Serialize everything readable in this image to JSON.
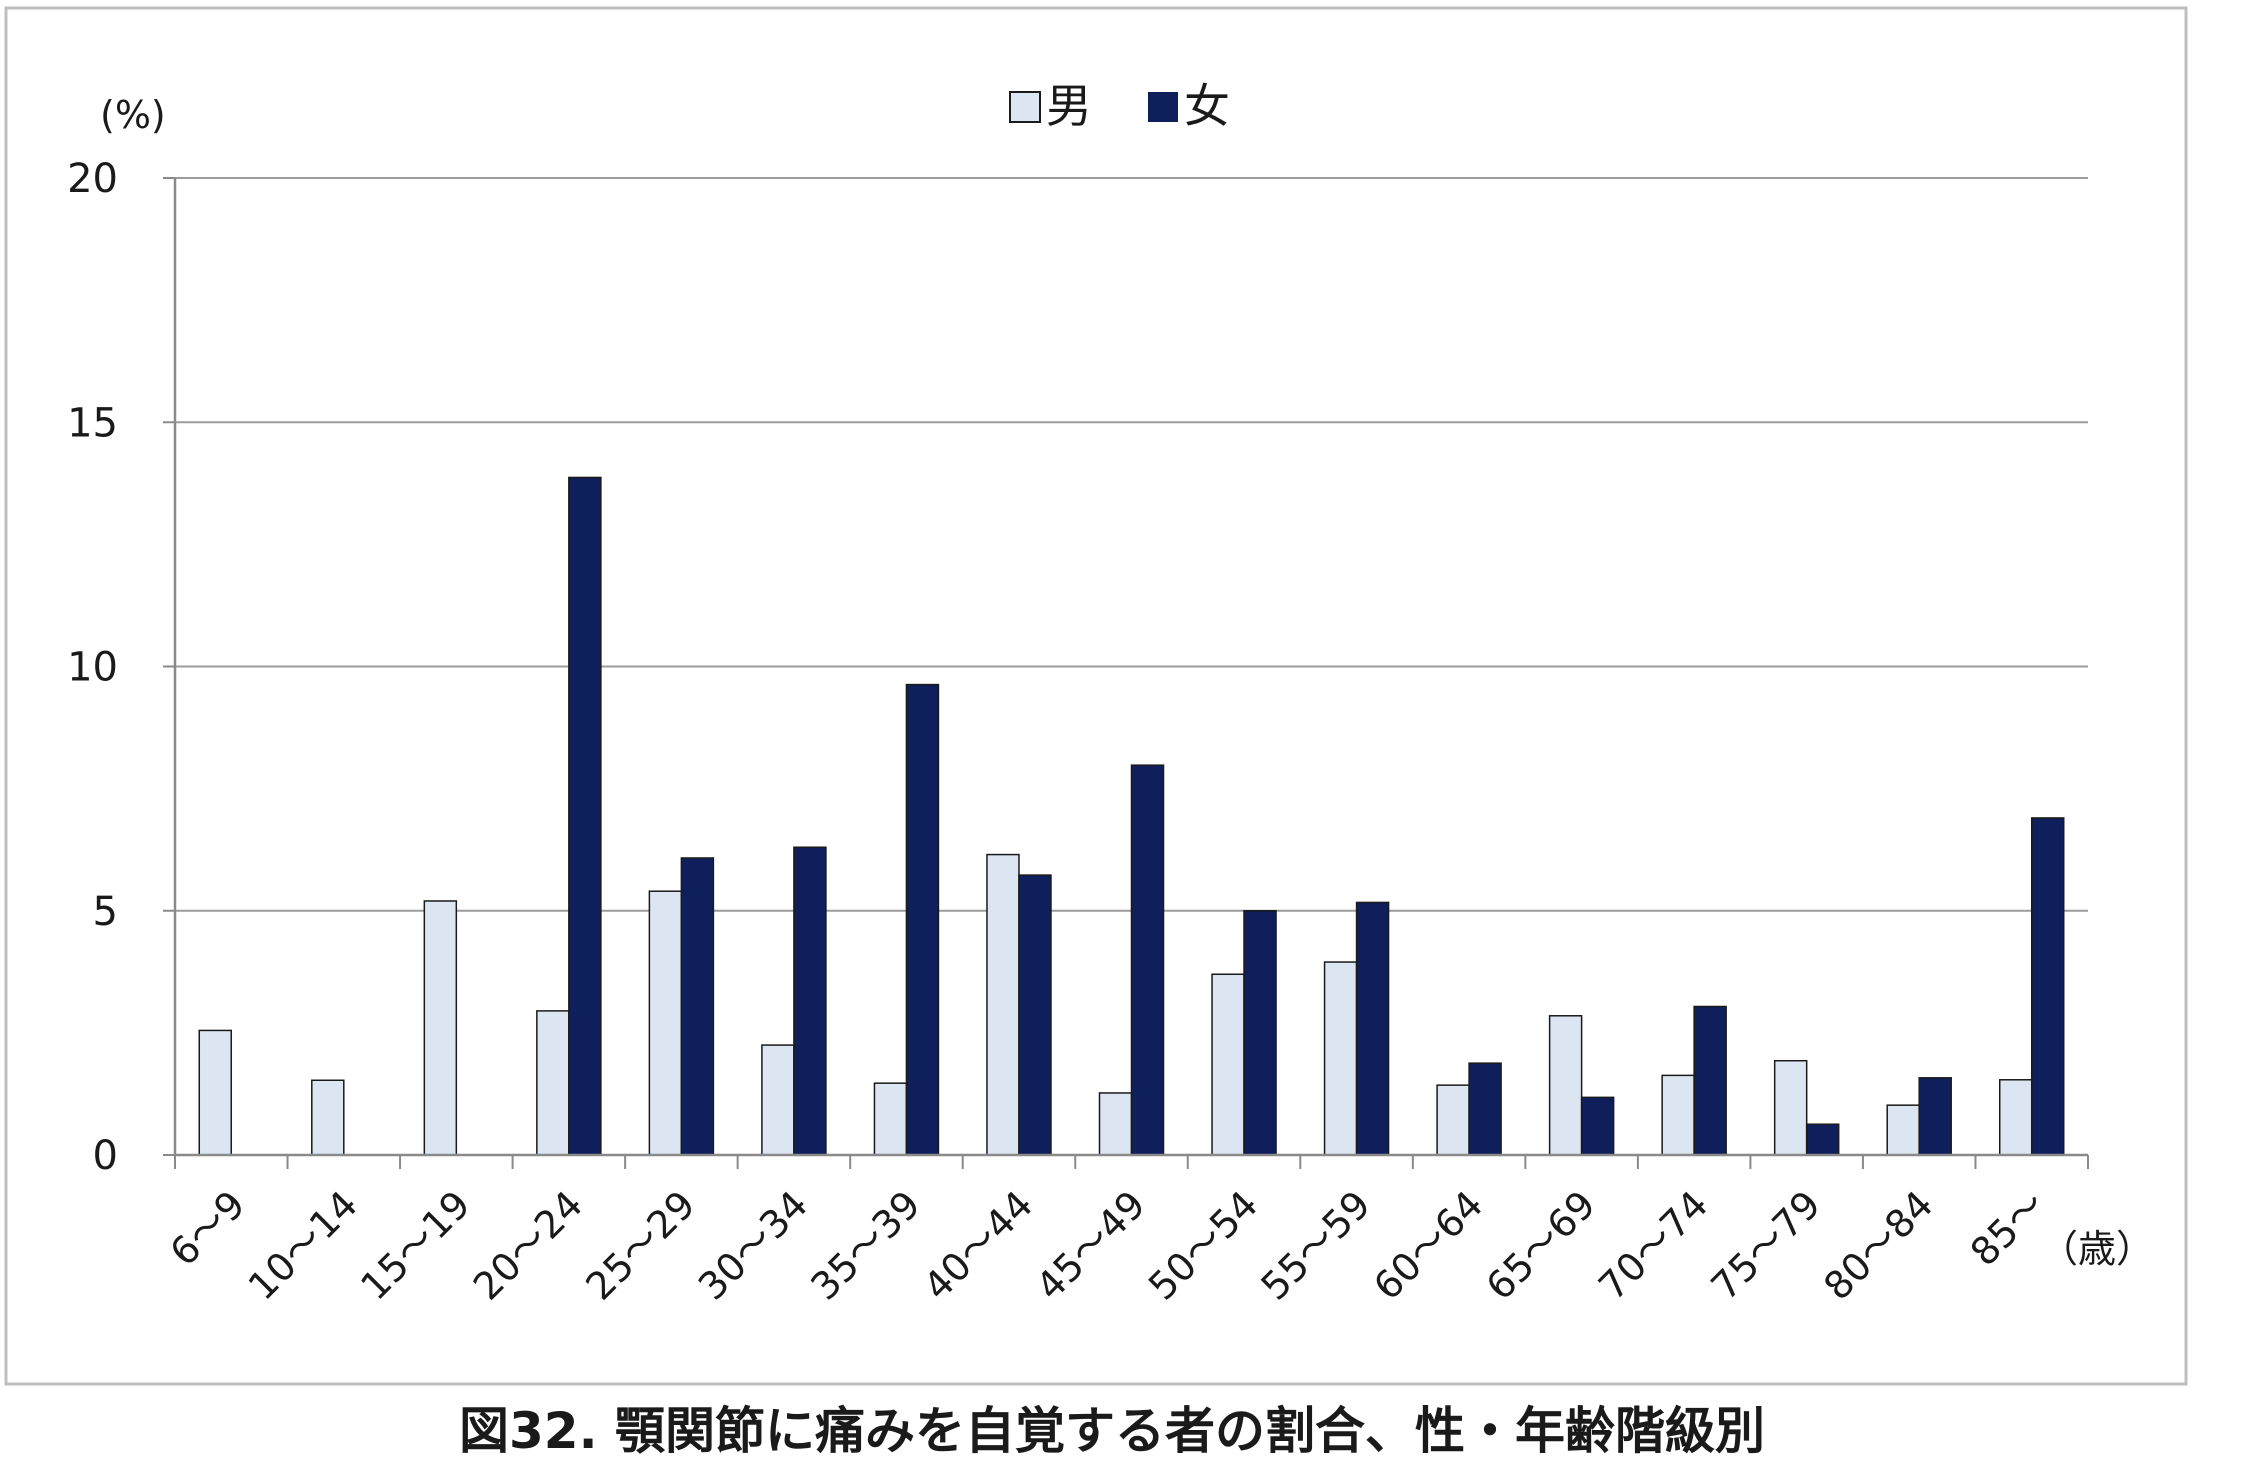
{
  "chart_data": {
    "type": "bar",
    "title": "",
    "caption": "図32.  顎関節に痛みを自覚する者の割合、性・年齢階級別",
    "ylabel": "(%)",
    "xlabel": "（歳）",
    "ylim": [
      0,
      20
    ],
    "yticks": [
      "0",
      "5",
      "10",
      "15",
      "20"
    ],
    "grid": true,
    "legend_position": "top-center",
    "categories": [
      "6～9",
      "10～14",
      "15～19",
      "20～24",
      "25～29",
      "30～34",
      "35～39",
      "40～44",
      "45～49",
      "50～54",
      "55～59",
      "60～64",
      "65～69",
      "70～74",
      "75～79",
      "80～84",
      "85～"
    ],
    "series": [
      {
        "name": "男",
        "color": "#dce6f2",
        "values": [
          2.55,
          1.53,
          5.2,
          2.95,
          5.4,
          2.25,
          1.47,
          6.15,
          1.27,
          3.7,
          3.95,
          1.43,
          2.85,
          1.63,
          1.93,
          1.02,
          1.54
        ]
      },
      {
        "name": "女",
        "color": "#0e1f5b",
        "values": [
          0,
          0,
          0,
          13.87,
          6.08,
          6.3,
          9.63,
          5.73,
          7.98,
          5.0,
          5.17,
          1.88,
          1.18,
          3.04,
          0.63,
          1.58,
          6.9
        ]
      }
    ]
  }
}
